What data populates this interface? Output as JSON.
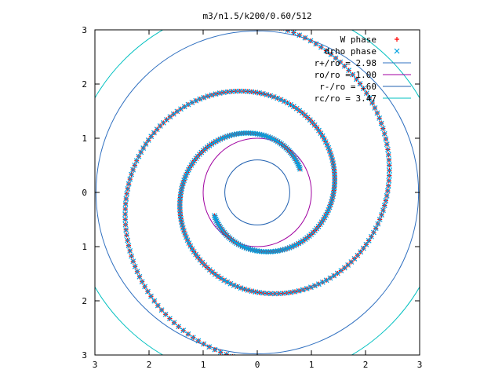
{
  "chart_data": {
    "type": "scatter",
    "title": "m3/n1.5/k200/0.60/512",
    "xlim": [
      -3,
      3
    ],
    "ylim": [
      -3,
      3
    ],
    "x_ticks": [
      {
        "v": -3,
        "label": "3"
      },
      {
        "v": -2,
        "label": "2"
      },
      {
        "v": -1,
        "label": "1"
      },
      {
        "v": 0,
        "label": "0"
      },
      {
        "v": 1,
        "label": "1"
      },
      {
        "v": 2,
        "label": "2"
      },
      {
        "v": 3,
        "label": "3"
      }
    ],
    "y_ticks": [
      {
        "v": 3,
        "label": "3"
      },
      {
        "v": 2,
        "label": "2"
      },
      {
        "v": 1,
        "label": "1"
      },
      {
        "v": 0,
        "label": "0"
      },
      {
        "v": -1,
        "label": "1"
      },
      {
        "v": -2,
        "label": "2"
      },
      {
        "v": -3,
        "label": "3"
      }
    ],
    "grid": false,
    "legend_position": "top-right",
    "series": [
      {
        "name": "W phase",
        "marker": "plus",
        "color": "#ff0000",
        "spiral": {
          "a": 0.9,
          "b": 0.17,
          "arms": [
            0.5,
            3.64
          ],
          "t_range": [
            0,
            11.4
          ],
          "n_points": 300
        }
      },
      {
        "name": "drho phase",
        "marker": "cross",
        "color": "#00a0e0",
        "spiral": {
          "a": 0.9,
          "b": 0.17,
          "arms": [
            0.5,
            3.64
          ],
          "t_range": [
            0,
            11.4
          ],
          "n_points": 300
        }
      }
    ],
    "circles": [
      {
        "name": "r+/ro = 2.98",
        "radius": 2.98,
        "color": "#3070c0"
      },
      {
        "name": "ro/ro = 1.00",
        "radius": 1.0,
        "color": "#a000a0"
      },
      {
        "name": "r-/ro = .60",
        "radius": 0.6,
        "color": "#2060b0"
      },
      {
        "name": "rc/ro = 3.47",
        "radius": 3.47,
        "color": "#00c0c0"
      }
    ]
  }
}
